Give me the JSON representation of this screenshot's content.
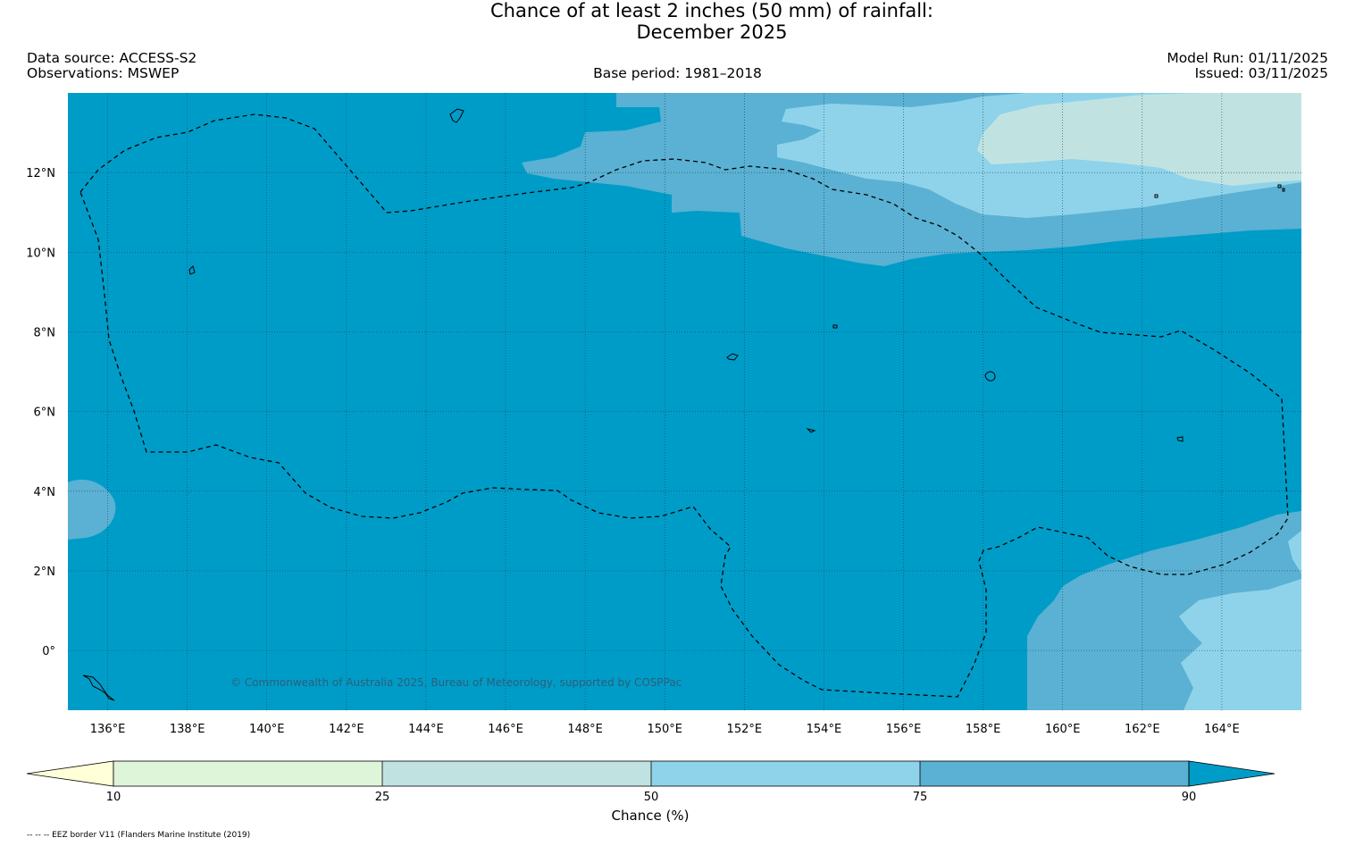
{
  "title": {
    "line1": "Chance of at least 2 inches (50  mm) of rainfall:",
    "line2": "December 2025"
  },
  "meta": {
    "data_source": "Data source: ACCESS-S2",
    "observations": "Observations: MSWEP",
    "base_period": "Base period: 1981–2018",
    "model_run": "Model Run: 01/11/2025",
    "issued": "Issued: 03/11/2025"
  },
  "map": {
    "lon_range": [
      135,
      166
    ],
    "lat_range": [
      -1.5,
      14
    ],
    "lon_ticks": [
      {
        "value": 136,
        "label": "136°E"
      },
      {
        "value": 138,
        "label": "138°E"
      },
      {
        "value": 140,
        "label": "140°E"
      },
      {
        "value": 142,
        "label": "142°E"
      },
      {
        "value": 144,
        "label": "144°E"
      },
      {
        "value": 146,
        "label": "146°E"
      },
      {
        "value": 148,
        "label": "148°E"
      },
      {
        "value": 150,
        "label": "150°E"
      },
      {
        "value": 152,
        "label": "152°E"
      },
      {
        "value": 154,
        "label": "154°E"
      },
      {
        "value": 156,
        "label": "156°E"
      },
      {
        "value": 158,
        "label": "158°E"
      },
      {
        "value": 160,
        "label": "160°E"
      },
      {
        "value": 162,
        "label": "162°E"
      },
      {
        "value": 164,
        "label": "164°E"
      }
    ],
    "lat_ticks": [
      {
        "value": 12,
        "label": "12°N"
      },
      {
        "value": 10,
        "label": "10°N"
      },
      {
        "value": 8,
        "label": "8°N"
      },
      {
        "value": 6,
        "label": "6°N"
      },
      {
        "value": 4,
        "label": "4°N"
      },
      {
        "value": 2,
        "label": "2°N"
      },
      {
        "value": 0,
        "label": "0°"
      }
    ],
    "copyright": "© Commonwealth of Australia 2025, Bureau of Meteorology, supported by COSPPac",
    "colors": {
      "above_90": "#009cc8",
      "c75_90": "#5ab1d3",
      "c50_75": "#8fd3ea",
      "c25_50": "#c0e3e2",
      "c10_25": "#dff5d9",
      "below_10": "#ffffd8"
    }
  },
  "colorbar": {
    "title": "Chance (%)",
    "ticks": [
      "10",
      "25",
      "50",
      "75",
      "90"
    ]
  },
  "footnote": "-- -- -- EEZ border V11 (Flanders Marine Institute (2019)"
}
